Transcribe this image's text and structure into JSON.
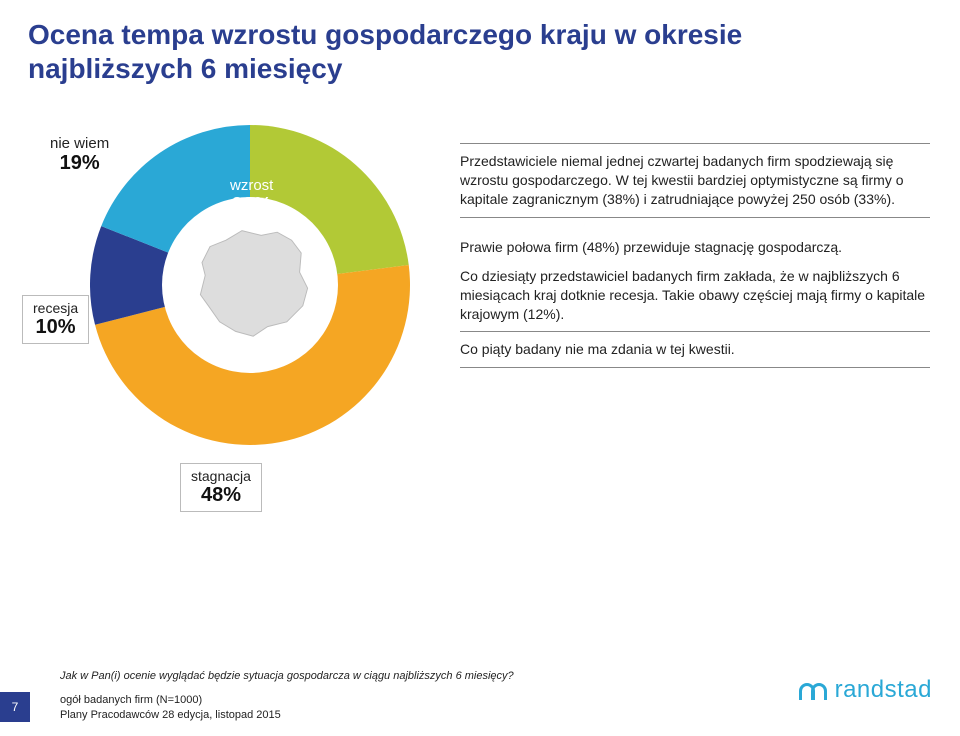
{
  "title_line1": "Ocena tempa wzrostu gospodarczego kraju w okresie",
  "title_line2": "najbliższych 6 miesięcy",
  "chart": {
    "type": "donut",
    "inner_radius_ratio": 0.55,
    "background_color": "#ffffff",
    "slices": [
      {
        "key": "wzrost",
        "label": "wzrost",
        "pct": "23%",
        "value": 23,
        "color": "#b2c936"
      },
      {
        "key": "stagnacja",
        "label": "stagnacja",
        "pct": "48%",
        "value": 48,
        "color": "#f5a623"
      },
      {
        "key": "recesja",
        "label": "recesja",
        "pct": "10%",
        "value": 10,
        "color": "#2a3e8f"
      },
      {
        "key": "nie_wiem",
        "label": "nie wiem",
        "pct": "19%",
        "value": 19,
        "color": "#2aa8d6"
      }
    ],
    "center_icon": "country-silhouette",
    "center_icon_color": "#dddddd",
    "callout_border_color": "#bbbbbb"
  },
  "labels": {
    "wzrost": {
      "name": "wzrost",
      "pct": "23%"
    },
    "stagnacja": {
      "name": "stagnacja",
      "pct": "48%"
    },
    "recesja": {
      "name": "recesja",
      "pct": "10%"
    },
    "nie_wiem": {
      "name": "nie wiem",
      "pct": "19%"
    }
  },
  "commentary": {
    "p1": "Przedstawiciele niemal jednej czwartej badanych firm spodziewają się wzrostu gospodarczego. W tej kwestii bardziej optymistyczne są firmy o kapitale zagranicznym (38%) i zatrudniające powyżej 250 osób (33%).",
    "p2": "Prawie połowa firm (48%) przewiduje stagnację gospodarczą.",
    "p3": "Co dziesiąty przedstawiciel badanych firm zakłada, że w najbliższych 6 miesiącach kraj dotknie recesja. Takie obawy częściej mają firmy o kapitale krajowym (12%).",
    "p4": "Co piąty badany nie ma zdania w tej kwestii."
  },
  "footer": {
    "question": "Jak w Pan(i) ocenie wyglądać będzie sytuacja gospodarcza w ciągu najbliższych 6 miesięcy?",
    "page": "7",
    "caption1": "ogół badanych firm (N=1000)",
    "caption2": "Plany Pracodawców 28 edycja, listopad 2015",
    "logo_text": "randstad"
  },
  "colors": {
    "title": "#2a3e8f",
    "body_text": "#222222",
    "rule": "#888888",
    "accent": "#2aa8d6",
    "page_bg": "#2a3e8f"
  },
  "typography": {
    "title_fontsize": 28,
    "body_fontsize": 14,
    "label_name_fontsize": 15,
    "label_pct_fontsize": 20,
    "footer_fontsize": 11
  }
}
